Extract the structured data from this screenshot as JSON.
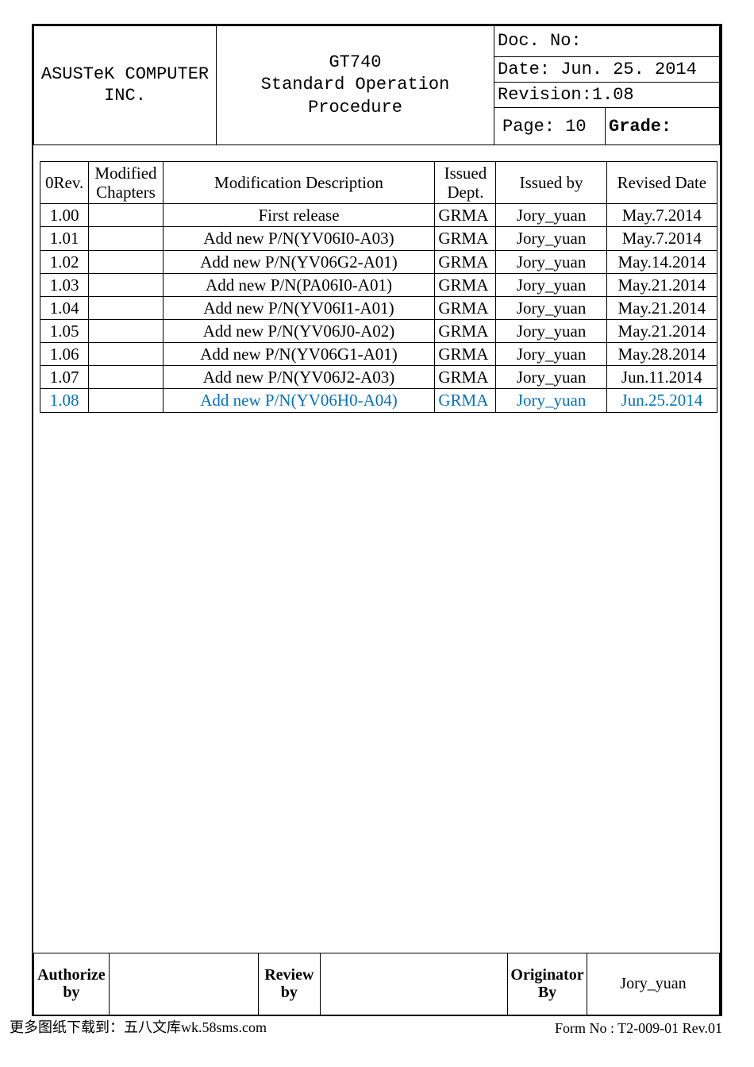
{
  "header": {
    "company_line1": "ASUSTeK COMPUTER",
    "company_line2": "INC.",
    "product": "GT740",
    "doc_title": "Standard Operation Procedure",
    "doc_no_label": "Doc. No:",
    "date_label": "Date: Jun. 25. 2014",
    "revision_label": "Revision:1.08",
    "page_label": "Page: 10",
    "grade_label": "Grade:"
  },
  "rev_header": {
    "rev": "0Rev.",
    "chapters": "Modified Chapters",
    "desc": "Modification Description",
    "dept": "Issued Dept.",
    "issued_by": "Issued by",
    "revised_date": "Revised Date"
  },
  "revisions": [
    {
      "rev": "1.00",
      "chap": "",
      "desc": "First release",
      "dept": "GRMA",
      "by": "Jory_yuan",
      "date": "May.7.2014",
      "hl": false
    },
    {
      "rev": "1.01",
      "chap": "",
      "desc": "Add new P/N(YV06I0-A03)",
      "dept": "GRMA",
      "by": "Jory_yuan",
      "date": "May.7.2014",
      "hl": false
    },
    {
      "rev": "1.02",
      "chap": "",
      "desc": "Add new P/N(YV06G2-A01)",
      "dept": "GRMA",
      "by": "Jory_yuan",
      "date": "May.14.2014",
      "hl": false
    },
    {
      "rev": "1.03",
      "chap": "",
      "desc": "Add new P/N(PA06I0-A01)",
      "dept": "GRMA",
      "by": "Jory_yuan",
      "date": "May.21.2014",
      "hl": false
    },
    {
      "rev": "1.04",
      "chap": "",
      "desc": "Add new P/N(YV06I1-A01)",
      "dept": "GRMA",
      "by": "Jory_yuan",
      "date": "May.21.2014",
      "hl": false
    },
    {
      "rev": "1.05",
      "chap": "",
      "desc": "Add new P/N(YV06J0-A02)",
      "dept": "GRMA",
      "by": "Jory_yuan",
      "date": "May.21.2014",
      "hl": false
    },
    {
      "rev": "1.06",
      "chap": "",
      "desc": "Add new P/N(YV06G1-A01)",
      "dept": "GRMA",
      "by": "Jory_yuan",
      "date": "May.28.2014",
      "hl": false
    },
    {
      "rev": "1.07",
      "chap": "",
      "desc": "Add new P/N(YV06J2-A03)",
      "dept": "GRMA",
      "by": "Jory_yuan",
      "date": "Jun.11.2014",
      "hl": false
    },
    {
      "rev": "1.08",
      "chap": "",
      "desc": "Add new P/N(YV06H0-A04)",
      "dept": "GRMA",
      "by": "Jory_yuan",
      "date": "Jun.25.2014",
      "hl": true
    }
  ],
  "signatures": {
    "authorize_label": "Authorize by",
    "authorize_value": "",
    "review_label": "Review by",
    "review_value": "",
    "originator_label": "Originator By",
    "originator_value": "Jory_yuan"
  },
  "footer": {
    "left": "更多图纸下载到：五八文库wk.58sms.com",
    "right": "Form No : T2-009-01 Rev.01"
  },
  "colors": {
    "highlight": "#0070c0",
    "text": "#000000",
    "background": "#ffffff"
  }
}
